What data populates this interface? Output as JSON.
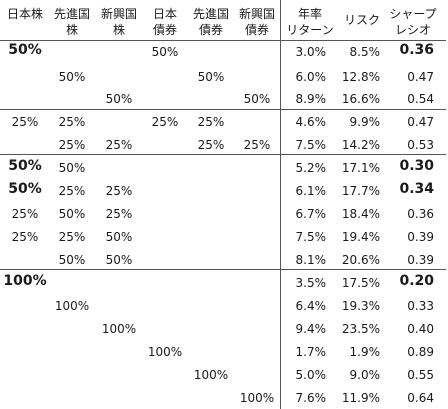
{
  "headers": [
    {
      "line1": "日本株",
      "line2": ""
    },
    {
      "line1": "先進国",
      "line2": "株"
    },
    {
      "line1": "新興国",
      "line2": "株"
    },
    {
      "line1": "日本",
      "line2": "債券"
    },
    {
      "line1": "先進国",
      "line2": "債券"
    },
    {
      "line1": "新興国",
      "line2": "債券"
    },
    {
      "line1": "年率",
      "line2": "リターン"
    },
    {
      "line1": "リスク",
      "line2": ""
    },
    {
      "line1": "シャープ",
      "line2": "レシオ"
    }
  ],
  "rows": [
    {
      "alloc": [
        "50%",
        "",
        "",
        "50%",
        "",
        ""
      ],
      "ret": "3.0%",
      "risk": "8.5%",
      "sharpe": "0.36",
      "bold_first": true,
      "bold_sharpe": true
    },
    {
      "alloc": [
        "",
        "50%",
        "",
        "",
        "50%",
        ""
      ],
      "ret": "6.0%",
      "risk": "12.8%",
      "sharpe": "0.47",
      "bold_first": false,
      "bold_sharpe": false
    },
    {
      "alloc": [
        "",
        "",
        "50%",
        "",
        "",
        "50%"
      ],
      "ret": "8.9%",
      "risk": "16.6%",
      "sharpe": "0.54",
      "bold_first": false,
      "bold_sharpe": false
    },
    {
      "alloc": [
        "25%",
        "25%",
        "",
        "25%",
        "25%",
        ""
      ],
      "ret": "4.6%",
      "risk": "9.9%",
      "sharpe": "0.47",
      "bold_first": false,
      "bold_sharpe": false
    },
    {
      "alloc": [
        "",
        "25%",
        "25%",
        "",
        "25%",
        "25%"
      ],
      "ret": "7.5%",
      "risk": "14.2%",
      "sharpe": "0.53",
      "bold_first": false,
      "bold_sharpe": false
    },
    {
      "alloc": [
        "50%",
        "50%",
        "",
        "",
        "",
        ""
      ],
      "ret": "5.2%",
      "risk": "17.1%",
      "sharpe": "0.30",
      "bold_first": true,
      "bold_sharpe": true
    },
    {
      "alloc": [
        "50%",
        "25%",
        "25%",
        "",
        "",
        ""
      ],
      "ret": "6.1%",
      "risk": "17.7%",
      "sharpe": "0.34",
      "bold_first": true,
      "bold_sharpe": true
    },
    {
      "alloc": [
        "25%",
        "50%",
        "25%",
        "",
        "",
        ""
      ],
      "ret": "6.7%",
      "risk": "18.4%",
      "sharpe": "0.36",
      "bold_first": false,
      "bold_sharpe": false
    },
    {
      "alloc": [
        "25%",
        "25%",
        "50%",
        "",
        "",
        ""
      ],
      "ret": "7.5%",
      "risk": "19.4%",
      "sharpe": "0.39",
      "bold_first": false,
      "bold_sharpe": false
    },
    {
      "alloc": [
        "",
        "50%",
        "50%",
        "",
        "",
        ""
      ],
      "ret": "8.1%",
      "risk": "20.6%",
      "sharpe": "0.39",
      "bold_first": false,
      "bold_sharpe": false
    },
    {
      "alloc": [
        "100%",
        "",
        "",
        "",
        "",
        ""
      ],
      "ret": "3.5%",
      "risk": "17.5%",
      "sharpe": "0.20",
      "bold_first": true,
      "bold_sharpe": true
    },
    {
      "alloc": [
        "",
        "100%",
        "",
        "",
        "",
        ""
      ],
      "ret": "6.4%",
      "risk": "19.3%",
      "sharpe": "0.33",
      "bold_first": false,
      "bold_sharpe": false
    },
    {
      "alloc": [
        "",
        "",
        "100%",
        "",
        "",
        ""
      ],
      "ret": "9.4%",
      "risk": "23.5%",
      "sharpe": "0.40",
      "bold_first": false,
      "bold_sharpe": false
    },
    {
      "alloc": [
        "",
        "",
        "",
        "100%",
        "",
        ""
      ],
      "ret": "1.7%",
      "risk": "1.9%",
      "sharpe": "0.89",
      "bold_first": false,
      "bold_sharpe": false
    },
    {
      "alloc": [
        "",
        "",
        "",
        "",
        "100%",
        ""
      ],
      "ret": "5.0%",
      "risk": "9.0%",
      "sharpe": "0.55",
      "bold_first": false,
      "bold_sharpe": false
    },
    {
      "alloc": [
        "",
        "",
        "",
        "",
        "",
        "100%"
      ],
      "ret": "7.6%",
      "risk": "11.9%",
      "sharpe": "0.64",
      "bold_first": false,
      "bold_sharpe": false
    }
  ],
  "group_breaks_after_rows": [
    2,
    4,
    9
  ]
}
